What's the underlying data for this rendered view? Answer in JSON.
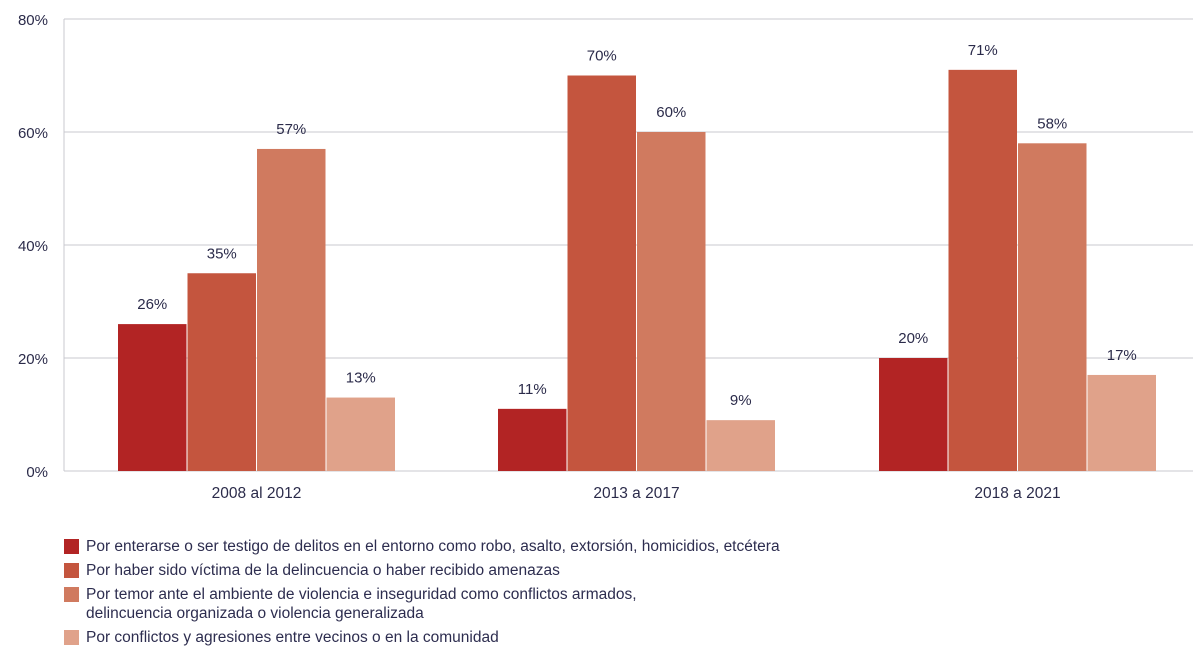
{
  "chart_data": {
    "type": "bar",
    "categories": [
      "2008 al 2012",
      "2013 a 2017",
      "2018 a 2021"
    ],
    "ylim": [
      0,
      80
    ],
    "yticks": [
      0,
      20,
      40,
      60,
      80
    ],
    "ytick_labels": [
      "0%",
      "20%",
      "40%",
      "60%",
      "80%"
    ],
    "grid": true,
    "legend_position": "bottom",
    "series": [
      {
        "name": "Por enterarse o ser testigo de delitos en el entorno como robo, asalto, extorsión, homicidios, etcétera",
        "values": [
          26,
          11,
          20
        ],
        "labels": [
          "26%",
          "11%",
          "20%"
        ],
        "color": "#b22424"
      },
      {
        "name": "Por haber sido víctima de la delincuencia o haber recibido amenazas",
        "values": [
          35,
          70,
          71
        ],
        "labels": [
          "35%",
          "70%",
          "71%"
        ],
        "color": "#c4553e"
      },
      {
        "name": "Por temor ante el ambiente de violencia e inseguridad como conflictos armados,\ndelincuencia organizada o violencia generalizada",
        "values": [
          57,
          60,
          58
        ],
        "labels": [
          "57%",
          "60%",
          "58%"
        ],
        "color": "#d07a5f"
      },
      {
        "name": "Por conflictos y agresiones entre vecinos o en la comunidad",
        "values": [
          13,
          9,
          17
        ],
        "labels": [
          "13%",
          "9%",
          "17%"
        ],
        "color": "#e0a28a"
      }
    ]
  }
}
